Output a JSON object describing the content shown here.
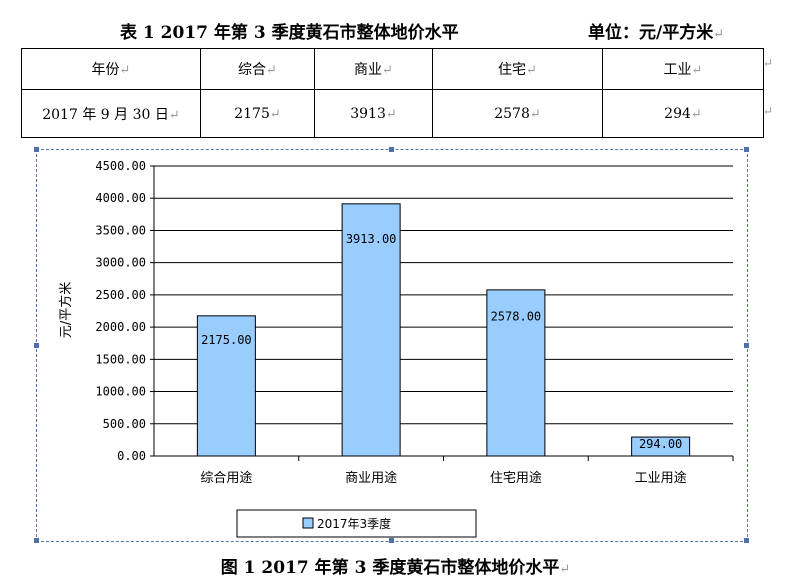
{
  "table_caption": {
    "title": "表 1   2017 年第 3 季度黄石市整体地价水平",
    "unit": "单位：元/平方米"
  },
  "table": {
    "headers": [
      "年份",
      "综合",
      "商业",
      "住宅",
      "工业"
    ],
    "rows": [
      [
        "2017 年 9 月 30 日",
        "2175",
        "3913",
        "2578",
        "294"
      ]
    ]
  },
  "chart_data": {
    "type": "bar",
    "categories": [
      "综合用途",
      "商业用途",
      "住宅用途",
      "工业用途"
    ],
    "series": [
      {
        "name": "2017年3季度",
        "values": [
          2175,
          3913,
          2578,
          294
        ]
      }
    ],
    "data_labels": [
      "2175.00",
      "3913.00",
      "2578.00",
      "294.00"
    ],
    "ylabel": "元/平方米",
    "ylim": [
      0,
      4500
    ],
    "yticks": [
      "0.00",
      "500.00",
      "1000.00",
      "1500.00",
      "2000.00",
      "2500.00",
      "3000.00",
      "3500.00",
      "4000.00",
      "4500.00"
    ],
    "grid": true,
    "legend": "bottom",
    "bar_color": "#99ccff"
  },
  "figure_caption": "图 1   2017 年第 3 季度黄石市整体地价水平",
  "paragraph_mark": "↵"
}
